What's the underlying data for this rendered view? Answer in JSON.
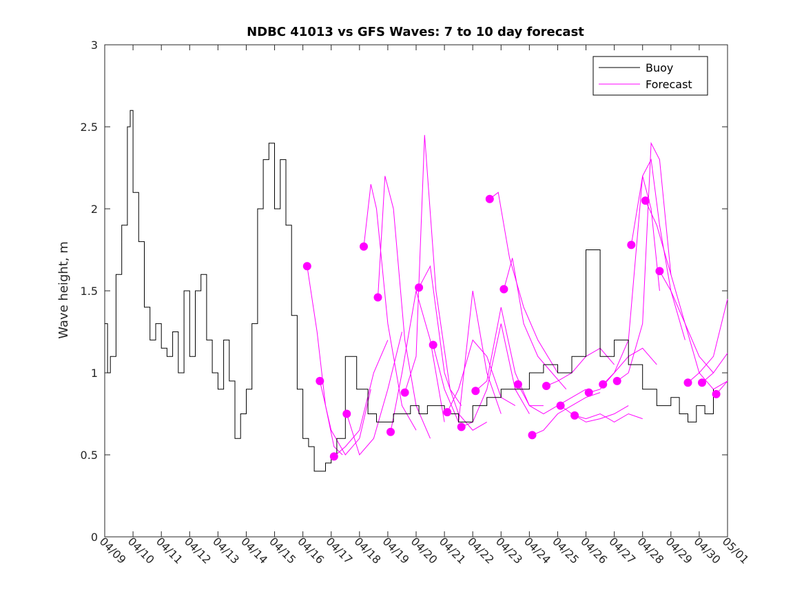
{
  "chart_data": {
    "type": "line",
    "title": "NDBC 41013 vs GFS Waves: 7 to 10 day forecast",
    "xlabel": "",
    "ylabel": "Wave height, m",
    "ylim": [
      0,
      3
    ],
    "yticks": [
      "0",
      "0.5",
      "1",
      "1.5",
      "2",
      "2.5",
      "3"
    ],
    "xticks": [
      "04/09",
      "04/10",
      "04/11",
      "04/12",
      "04/13",
      "04/14",
      "04/15",
      "04/16",
      "04/17",
      "04/18",
      "04/19",
      "04/20",
      "04/21",
      "04/22",
      "04/23",
      "04/24",
      "04/25",
      "04/26",
      "04/27",
      "04/28",
      "04/29",
      "04/30",
      "05/01"
    ],
    "grid": false,
    "legend_position": "top-right",
    "colors": {
      "buoy": "#000000",
      "forecast": "#ff00ff"
    },
    "legend": [
      {
        "label": "Buoy",
        "color": "#000000"
      },
      {
        "label": "Forecast",
        "color": "#ff00ff"
      }
    ],
    "x_units": "day index from 04/09 (0) to 05/01 (22)",
    "buoy": {
      "name": "Buoy",
      "x": [
        0,
        0.1,
        0.2,
        0.4,
        0.6,
        0.8,
        0.9,
        1.0,
        1.2,
        1.4,
        1.6,
        1.8,
        2.0,
        2.2,
        2.4,
        2.6,
        2.8,
        3.0,
        3.1,
        3.2,
        3.4,
        3.6,
        3.8,
        4.0,
        4.2,
        4.4,
        4.6,
        4.8,
        5.0,
        5.2,
        5.4,
        5.6,
        5.8,
        6.0,
        6.2,
        6.4,
        6.6,
        6.8,
        7.0,
        7.2,
        7.4,
        7.6,
        7.8,
        8.0,
        8.2,
        8.5,
        8.9,
        9.3,
        9.6,
        9.9,
        10.2,
        10.5,
        10.8,
        11.1,
        11.4,
        11.7,
        12.0,
        12.5,
        13.0,
        13.5,
        14.0,
        14.5,
        15.0,
        15.5,
        16.0,
        16.5,
        17.0,
        17.5,
        18.0,
        18.5,
        19.0,
        19.5,
        20.0,
        20.3,
        20.6,
        20.9,
        21.2,
        21.5
      ],
      "y": [
        1.3,
        1.0,
        1.1,
        1.6,
        1.9,
        2.5,
        2.6,
        2.1,
        1.8,
        1.4,
        1.2,
        1.3,
        1.15,
        1.1,
        1.25,
        1.0,
        1.5,
        1.1,
        1.1,
        1.5,
        1.6,
        1.2,
        1.0,
        0.9,
        1.2,
        0.95,
        0.6,
        0.75,
        0.9,
        1.3,
        2.0,
        2.3,
        2.4,
        2.0,
        2.3,
        1.9,
        1.35,
        0.9,
        0.6,
        0.55,
        0.4,
        0.4,
        0.45,
        0.5,
        0.6,
        1.1,
        0.9,
        0.75,
        0.7,
        0.7,
        0.75,
        0.75,
        0.8,
        0.75,
        0.8,
        0.8,
        0.75,
        0.7,
        0.8,
        0.85,
        0.9,
        0.9,
        1.0,
        1.05,
        1.0,
        1.1,
        1.75,
        1.1,
        1.2,
        1.05,
        0.9,
        0.8,
        0.85,
        0.75,
        0.7,
        0.8,
        0.75,
        0.9
      ]
    },
    "forecasts": [
      {
        "x": [
          7.15,
          7.5,
          7.8,
          8.1,
          8.4
        ],
        "y": [
          1.65,
          1.25,
          0.8,
          0.55,
          0.5
        ]
      },
      {
        "x": [
          7.6,
          8.0,
          8.5,
          9.0,
          9.4
        ],
        "y": [
          0.95,
          0.65,
          0.5,
          0.6,
          0.9
        ]
      },
      {
        "x": [
          8.1,
          8.5,
          9.0,
          9.5,
          10.0
        ],
        "y": [
          0.49,
          0.55,
          0.65,
          1.0,
          1.2
        ]
      },
      {
        "x": [
          8.55,
          9.0,
          9.5,
          10.0,
          10.5
        ],
        "y": [
          0.75,
          0.5,
          0.6,
          0.9,
          1.25
        ]
      },
      {
        "x": [
          9.15,
          9.4,
          9.6,
          10.0,
          10.5,
          11.0
        ],
        "y": [
          1.77,
          2.15,
          2.0,
          1.3,
          0.8,
          0.65
        ]
      },
      {
        "x": [
          9.65,
          9.9,
          10.2,
          10.6,
          11.0,
          11.5
        ],
        "y": [
          1.46,
          2.2,
          2.0,
          1.2,
          0.8,
          0.6
        ]
      },
      {
        "x": [
          10.1,
          10.5,
          11.0,
          11.5,
          12.0
        ],
        "y": [
          0.64,
          1.0,
          1.5,
          1.2,
          0.7
        ]
      },
      {
        "x": [
          10.6,
          11.0,
          11.3,
          11.7,
          12.2,
          12.6
        ],
        "y": [
          0.88,
          1.1,
          2.45,
          1.5,
          0.9,
          0.8
        ]
      },
      {
        "x": [
          11.1,
          11.5,
          12.0,
          12.5,
          13.0,
          13.5
        ],
        "y": [
          1.52,
          1.65,
          1.0,
          0.75,
          0.65,
          0.7
        ]
      },
      {
        "x": [
          11.6,
          12.0,
          12.5,
          13.0,
          13.5,
          14.0
        ],
        "y": [
          1.17,
          0.9,
          0.7,
          1.5,
          1.0,
          0.75
        ]
      },
      {
        "x": [
          12.1,
          12.5,
          13.0,
          13.5,
          14.0,
          14.5
        ],
        "y": [
          0.76,
          0.9,
          1.2,
          1.1,
          0.85,
          0.8
        ]
      },
      {
        "x": [
          12.6,
          13.0,
          13.5,
          14.0,
          14.5,
          15.0
        ],
        "y": [
          0.67,
          0.7,
          0.9,
          1.3,
          0.9,
          0.75
        ]
      },
      {
        "x": [
          13.1,
          13.5,
          14.0,
          14.5,
          15.0,
          15.5
        ],
        "y": [
          0.89,
          0.95,
          1.4,
          1.0,
          0.8,
          0.8
        ]
      },
      {
        "x": [
          13.6,
          13.9,
          14.3,
          14.8,
          15.3,
          16.0
        ],
        "y": [
          2.06,
          2.1,
          1.7,
          1.4,
          1.2,
          1.0
        ]
      },
      {
        "x": [
          14.1,
          14.4,
          14.8,
          15.3,
          15.8,
          16.3
        ],
        "y": [
          1.51,
          1.7,
          1.3,
          1.1,
          1.0,
          0.9
        ]
      },
      {
        "x": [
          14.6,
          15.0,
          15.5,
          16.0,
          16.5,
          17.0
        ],
        "y": [
          0.93,
          0.8,
          0.75,
          0.8,
          0.85,
          0.9
        ]
      },
      {
        "x": [
          15.1,
          15.5,
          16.0,
          16.5,
          17.0,
          17.5
        ],
        "y": [
          0.62,
          0.65,
          0.75,
          0.8,
          0.85,
          0.88
        ]
      },
      {
        "x": [
          15.6,
          16.0,
          16.5,
          17.0,
          17.5,
          18.0
        ],
        "y": [
          0.92,
          0.95,
          1.0,
          1.1,
          1.15,
          1.05
        ]
      },
      {
        "x": [
          16.1,
          16.5,
          17.0,
          17.5,
          18.0,
          18.5
        ],
        "y": [
          0.8,
          0.75,
          0.7,
          0.72,
          0.75,
          0.8
        ]
      },
      {
        "x": [
          16.6,
          17.0,
          17.5,
          18.0,
          18.5,
          19.0
        ],
        "y": [
          0.74,
          0.72,
          0.75,
          0.7,
          0.75,
          0.72
        ]
      },
      {
        "x": [
          17.1,
          17.5,
          18.0,
          18.5,
          19.0,
          19.5
        ],
        "y": [
          0.88,
          0.9,
          1.0,
          1.1,
          1.15,
          1.05
        ]
      },
      {
        "x": [
          17.6,
          18.0,
          18.5,
          19.0,
          19.3,
          19.6
        ],
        "y": [
          0.93,
          1.0,
          1.2,
          2.2,
          2.0,
          1.5
        ]
      },
      {
        "x": [
          18.1,
          18.5,
          19.0,
          19.3,
          19.6,
          20.0
        ],
        "y": [
          0.95,
          1.0,
          1.3,
          2.4,
          2.3,
          1.6
        ]
      },
      {
        "x": [
          18.6,
          19.0,
          19.3,
          19.6,
          20.0,
          20.5
        ],
        "y": [
          1.78,
          2.2,
          2.3,
          1.9,
          1.5,
          1.2
        ]
      },
      {
        "x": [
          19.1,
          19.5,
          20.0,
          20.5,
          21.0,
          21.5
        ],
        "y": [
          2.05,
          1.9,
          1.6,
          1.3,
          1.1,
          1.0
        ]
      },
      {
        "x": [
          19.6,
          20.0,
          20.5,
          21.0,
          21.5,
          22.0
        ],
        "y": [
          1.62,
          1.5,
          1.3,
          1.0,
          0.9,
          0.95
        ]
      },
      {
        "x": [
          20.6,
          21.0,
          21.5,
          22.0
        ],
        "y": [
          0.94,
          1.0,
          1.1,
          1.45
        ]
      },
      {
        "x": [
          21.1,
          21.5,
          22.0
        ],
        "y": [
          0.94,
          1.0,
          1.12
        ]
      },
      {
        "x": [
          21.6,
          22.0
        ],
        "y": [
          0.87,
          0.95
        ]
      }
    ]
  }
}
